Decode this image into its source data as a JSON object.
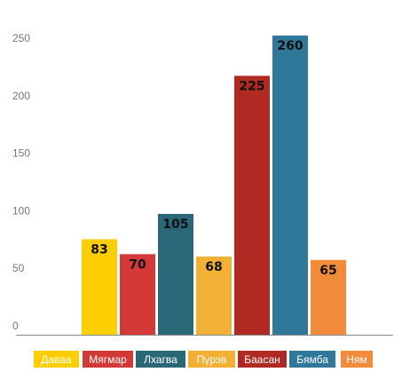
{
  "chart_data": {
    "type": "bar",
    "categories": [
      "Даваа",
      "Мягмар",
      "Лхагва",
      "Пүрэв",
      "Баасан",
      "Бямба",
      "Ням"
    ],
    "values": [
      83,
      70,
      105,
      68,
      225,
      260,
      65
    ],
    "value_labels": [
      "83",
      "70",
      "105",
      "68",
      "225",
      "260",
      "65"
    ],
    "colors": [
      "#FCCF04",
      "#D33A37",
      "#2B6877",
      "#F2B134",
      "#B02A24",
      "#30789A",
      "#F28B3A"
    ],
    "ylim": [
      0,
      270
    ],
    "yticks": [
      0,
      50,
      100,
      150,
      200,
      250
    ],
    "ytick_labels": [
      "0",
      "50",
      "100",
      "150",
      "200",
      "250"
    ],
    "grid": false,
    "legend_position": "bottom",
    "title": "",
    "xlabel": "",
    "ylabel": ""
  }
}
